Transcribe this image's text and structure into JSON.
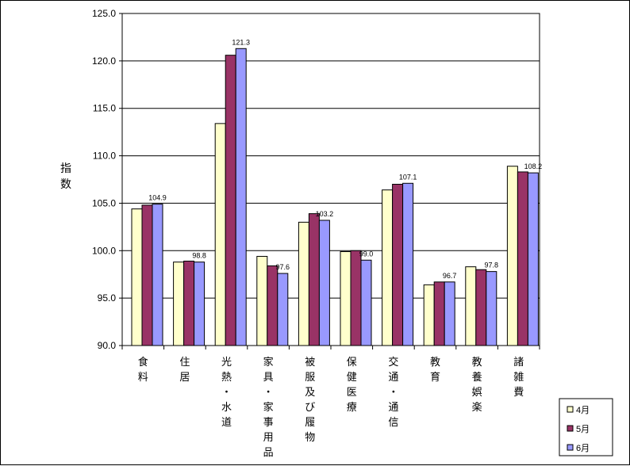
{
  "chart_data": {
    "type": "bar",
    "title": "",
    "ylabel": "指数",
    "xlabel": "",
    "ylim": [
      90.0,
      125.0
    ],
    "ytick_step": 5,
    "yticks": [
      "90.0",
      "95.0",
      "100.0",
      "105.0",
      "110.0",
      "115.0",
      "120.0",
      "125.0"
    ],
    "grid": true,
    "legend_position": "bottom-right",
    "categories": [
      "食料",
      "住居",
      "光熱・水道",
      "家具・家事用品",
      "被服及び履物",
      "保健医療",
      "交通・通信",
      "教育",
      "教養娯楽",
      "諸雑費"
    ],
    "series": [
      {
        "name": "4月",
        "color": "#FFFFCC",
        "values": [
          104.4,
          98.8,
          113.4,
          99.4,
          103.0,
          99.9,
          106.4,
          96.4,
          98.3,
          108.9
        ]
      },
      {
        "name": "5月",
        "color": "#993366",
        "values": [
          104.8,
          98.9,
          120.6,
          98.4,
          103.9,
          100.0,
          107.0,
          96.7,
          98.0,
          108.3
        ]
      },
      {
        "name": "6月",
        "color": "#9999FF",
        "values": [
          104.9,
          98.8,
          121.3,
          97.6,
          103.2,
          99.0,
          107.1,
          96.7,
          97.8,
          108.2
        ]
      }
    ],
    "data_labels": [
      "104.9",
      "98.8",
      "121.3",
      "97.6",
      "103.2",
      "99.0",
      "107.1",
      "96.7",
      "97.8",
      "108.2"
    ],
    "data_label_series": 2
  }
}
